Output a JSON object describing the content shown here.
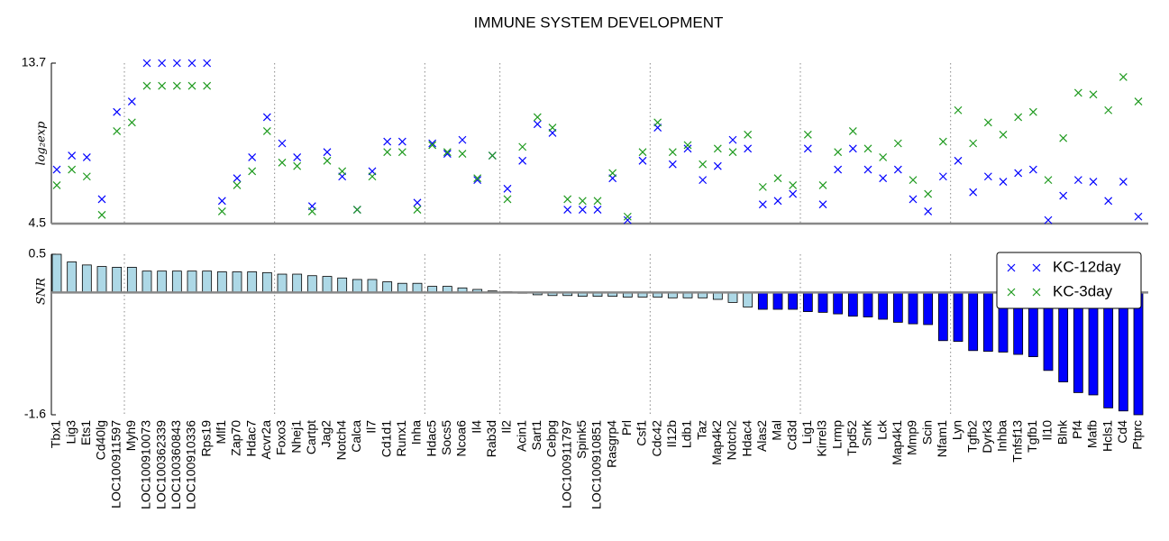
{
  "chart_data": [
    {
      "type": "scatter",
      "title": "IMMUNE SYSTEM DEVELOPMENT",
      "ylabel": "log₂exp",
      "ylim": [
        4.5,
        13.7
      ],
      "yticks": [
        4.5,
        13.7
      ],
      "series": [
        {
          "name": "KC-12day",
          "color": "#0000ff",
          "values": [
            7.6,
            8.4,
            8.3,
            5.9,
            10.9,
            11.5,
            13.7,
            13.7,
            13.7,
            13.7,
            13.7,
            5.8,
            7.1,
            8.3,
            10.6,
            9.1,
            8.3,
            5.5,
            8.6,
            7.2,
            5.3,
            7.5,
            9.2,
            9.2,
            5.7,
            9.1,
            8.5,
            9.3,
            7.0,
            8.4,
            6.5,
            8.1,
            10.2,
            9.7,
            5.3,
            5.3,
            5.3,
            7.1,
            4.7,
            8.1,
            10.0,
            7.9,
            8.8,
            7.0,
            7.8,
            9.3,
            8.8,
            5.6,
            5.8,
            6.2,
            8.8,
            5.6,
            7.6,
            8.8,
            7.6,
            7.1,
            7.6,
            5.9,
            5.2,
            7.2,
            8.1,
            6.3,
            7.2,
            6.9,
            7.4,
            7.6,
            4.7,
            6.1,
            7.0,
            6.9,
            5.8,
            6.9,
            4.9
          ]
        },
        {
          "name": "KC-3day",
          "color": "#1f9a1f",
          "values": [
            6.7,
            7.6,
            7.2,
            5.0,
            9.8,
            10.3,
            12.4,
            12.4,
            12.4,
            12.4,
            12.4,
            5.2,
            6.7,
            7.5,
            9.8,
            8.0,
            7.8,
            5.2,
            8.1,
            7.5,
            5.3,
            7.2,
            8.6,
            8.6,
            5.3,
            9.0,
            8.6,
            8.5,
            7.1,
            8.4,
            5.9,
            8.9,
            10.6,
            10.0,
            5.9,
            5.8,
            5.8,
            7.4,
            4.9,
            8.6,
            10.3,
            8.6,
            9.0,
            7.9,
            8.8,
            8.6,
            9.6,
            6.6,
            7.1,
            6.7,
            9.6,
            6.7,
            8.6,
            9.8,
            8.8,
            8.3,
            9.1,
            7.0,
            6.2,
            9.2,
            11.0,
            9.1,
            10.3,
            9.6,
            10.6,
            10.9,
            7.0,
            9.4,
            12.0,
            11.9,
            11.0,
            12.9,
            11.5
          ]
        }
      ]
    },
    {
      "type": "bar",
      "ylabel": "SNR",
      "ylim": [
        -1.6,
        0.5
      ],
      "yticks": [
        -1.6,
        0.5
      ],
      "legend": "upper right",
      "categories": [
        "Tbx1",
        "Lig3",
        "Ets1",
        "Cd40lg",
        "LOC100911597",
        "Myh9",
        "LOC100910073",
        "LOC100362339",
        "LOC100360843",
        "LOC100910336",
        "Rps19",
        "Mlf1",
        "Zap70",
        "Hdac7",
        "Acvr2a",
        "Foxo3",
        "Nhej1",
        "Cartpt",
        "Jag2",
        "Notch4",
        "Calca",
        "Il7",
        "Cd1d1",
        "Runx1",
        "Inha",
        "Hdac5",
        "Socs5",
        "Ncoa6",
        "Il4",
        "Rab3d",
        "Il2",
        "Acin1",
        "Sart1",
        "Cebpg",
        "LOC100911797",
        "Spink5",
        "LOC100910851",
        "Rasgrp4",
        "Prl",
        "Csf1",
        "Cdc42",
        "Il12b",
        "Ldb1",
        "Taz",
        "Map4k2",
        "Notch2",
        "Hdac4",
        "Alas2",
        "Mal",
        "Cd3d",
        "Lig1",
        "Kirrel3",
        "Lrmp",
        "Tpd52",
        "Snrk",
        "Lck",
        "Map4k1",
        "Mmp9",
        "Scin",
        "Nfam1",
        "Lyn",
        "Tgfb2",
        "Dyrk3",
        "Inhba",
        "Tnfsf13",
        "Tgfb1",
        "Il10",
        "Blnk",
        "Pf4",
        "Mafb",
        "Hcls1",
        "Cd4",
        "Ptprc"
      ],
      "values": [
        0.5,
        0.4,
        0.36,
        0.34,
        0.33,
        0.33,
        0.28,
        0.28,
        0.28,
        0.28,
        0.28,
        0.27,
        0.27,
        0.27,
        0.26,
        0.24,
        0.24,
        0.22,
        0.21,
        0.19,
        0.17,
        0.17,
        0.14,
        0.12,
        0.12,
        0.08,
        0.08,
        0.06,
        0.04,
        0.02,
        0.01,
        -0.01,
        -0.03,
        -0.04,
        -0.04,
        -0.05,
        -0.05,
        -0.05,
        -0.06,
        -0.06,
        -0.06,
        -0.07,
        -0.07,
        -0.07,
        -0.09,
        -0.13,
        -0.19,
        -0.22,
        -0.22,
        -0.22,
        -0.25,
        -0.26,
        -0.28,
        -0.31,
        -0.32,
        -0.35,
        -0.39,
        -0.41,
        -0.42,
        -0.63,
        -0.64,
        -0.76,
        -0.77,
        -0.78,
        -0.81,
        -0.84,
        -1.02,
        -1.17,
        -1.31,
        -1.34,
        -1.51,
        -1.55,
        -1.6
      ],
      "colors": [
        "#add8e6",
        "#add8e6",
        "#add8e6",
        "#add8e6",
        "#add8e6",
        "#add8e6",
        "#add8e6",
        "#add8e6",
        "#add8e6",
        "#add8e6",
        "#add8e6",
        "#add8e6",
        "#add8e6",
        "#add8e6",
        "#add8e6",
        "#add8e6",
        "#add8e6",
        "#add8e6",
        "#add8e6",
        "#add8e6",
        "#add8e6",
        "#add8e6",
        "#add8e6",
        "#add8e6",
        "#add8e6",
        "#add8e6",
        "#add8e6",
        "#add8e6",
        "#add8e6",
        "#add8e6",
        "#add8e6",
        "#add8e6",
        "#add8e6",
        "#add8e6",
        "#add8e6",
        "#add8e6",
        "#add8e6",
        "#add8e6",
        "#add8e6",
        "#add8e6",
        "#add8e6",
        "#add8e6",
        "#add8e6",
        "#add8e6",
        "#add8e6",
        "#add8e6",
        "#add8e6",
        "#0000ff",
        "#0000ff",
        "#0000ff",
        "#0000ff",
        "#0000ff",
        "#0000ff",
        "#0000ff",
        "#0000ff",
        "#0000ff",
        "#0000ff",
        "#0000ff",
        "#0000ff",
        "#0000ff",
        "#0000ff",
        "#0000ff",
        "#0000ff",
        "#0000ff",
        "#0000ff",
        "#0000ff",
        "#0000ff",
        "#0000ff",
        "#0000ff",
        "#0000ff",
        "#0000ff",
        "#0000ff",
        "#0000ff"
      ]
    }
  ]
}
